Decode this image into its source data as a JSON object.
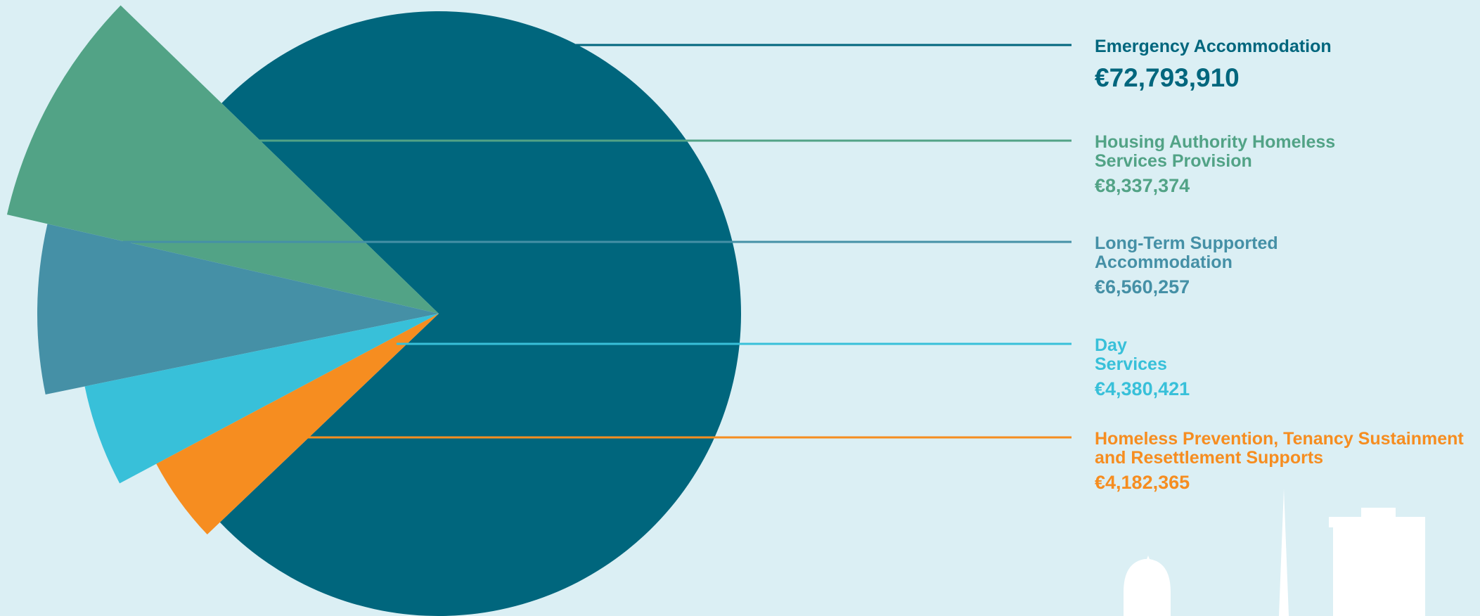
{
  "chart_data": {
    "type": "pie",
    "categories": [
      "Emergency Accommodation",
      "Housing Authority Homeless Services Provision",
      "Long-Term Supported Accommodation",
      "Day Services",
      "Homeless Prevention, Tenancy Sustainment and Resettlement Supports"
    ],
    "values": [
      72793910,
      8337374,
      6560257,
      4380421,
      4182365
    ],
    "value_labels": [
      "€72,793,910",
      "€8,337,374",
      "€6,560,257",
      "€4,380,421",
      "€4,182,365"
    ],
    "colors": [
      "#00667d",
      "#52a386",
      "#4590a6",
      "#38c0d9",
      "#f68d20"
    ]
  }
}
